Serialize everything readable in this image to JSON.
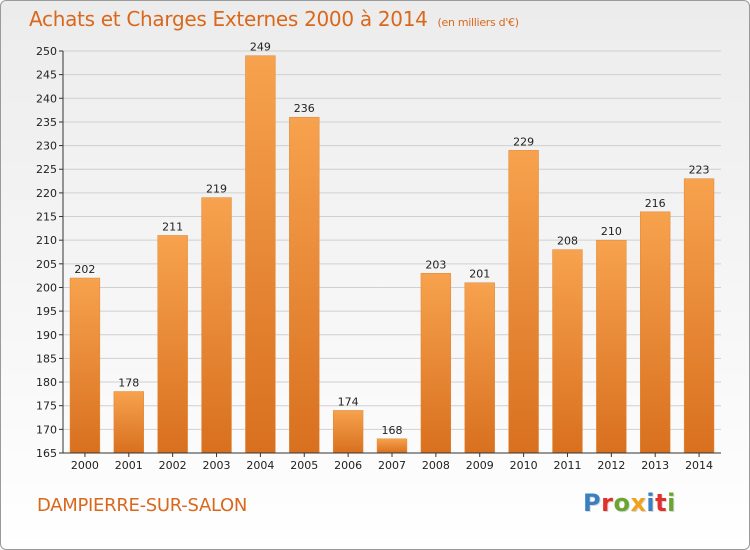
{
  "header": {
    "title": "Achats et Charges Externes 2000 à 2014",
    "subtitle": "(en milliers d'€)"
  },
  "footer": {
    "city": "DAMPIERRE-SUR-SALON",
    "logo": "Proxiti",
    "logo_colors": [
      "#3a7fc1",
      "#e0302b",
      "#6aa531",
      "#f2a21a",
      "#3a7fc1",
      "#e0302b",
      "#6aa531"
    ]
  },
  "chart_data": {
    "type": "bar",
    "categories": [
      "2000",
      "2001",
      "2002",
      "2003",
      "2004",
      "2005",
      "2006",
      "2007",
      "2008",
      "2009",
      "2010",
      "2011",
      "2012",
      "2013",
      "2014"
    ],
    "values": [
      202,
      178,
      211,
      219,
      249,
      236,
      174,
      168,
      203,
      201,
      229,
      208,
      210,
      216,
      223
    ],
    "title": "Achats et Charges Externes 2000 à 2014",
    "ylim": [
      165,
      250
    ],
    "yticks": [
      165,
      170,
      175,
      180,
      185,
      190,
      195,
      200,
      205,
      210,
      215,
      220,
      225,
      230,
      235,
      240,
      245,
      250
    ],
    "grid": true,
    "bar_color": "#f0913a"
  }
}
